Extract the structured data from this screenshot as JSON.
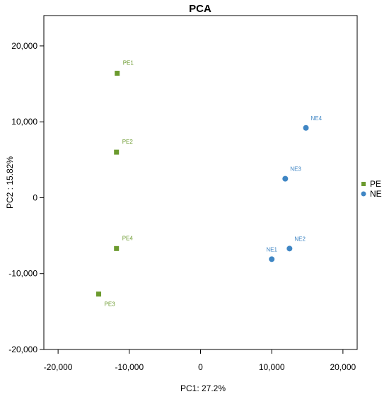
{
  "chart_data": {
    "type": "scatter",
    "title": "PCA",
    "xlabel": "PC1: 27.2%",
    "ylabel": "PC2 : 15.82%",
    "xlim": [
      -22000,
      22000
    ],
    "ylim": [
      -20000,
      24000
    ],
    "xticks": [
      -20000,
      -10000,
      0,
      10000,
      20000
    ],
    "xtick_labels": [
      "-20,000",
      "-10,000",
      "0",
      "10,000",
      "20,000"
    ],
    "yticks": [
      -20000,
      -10000,
      0,
      10000,
      20000
    ],
    "ytick_labels": [
      "-20,000",
      "-10,000",
      "0",
      "10,000",
      "20,000"
    ],
    "grid": false,
    "legend_position": "right",
    "series": [
      {
        "name": "PE",
        "color": "#6b9a2e",
        "marker": "square",
        "points": [
          {
            "label": "PE1",
            "x": -11700,
            "y": 16400
          },
          {
            "label": "PE2",
            "x": -11800,
            "y": 6000
          },
          {
            "label": "PE4",
            "x": -11800,
            "y": -6700
          },
          {
            "label": "PE3",
            "x": -14300,
            "y": -12700
          }
        ]
      },
      {
        "name": "NE",
        "color": "#3f86c4",
        "marker": "circle",
        "points": [
          {
            "label": "NE4",
            "x": 14800,
            "y": 9200
          },
          {
            "label": "NE3",
            "x": 11900,
            "y": 2500
          },
          {
            "label": "NE2",
            "x": 12500,
            "y": -6700
          },
          {
            "label": "NE1",
            "x": 10000,
            "y": -8100
          }
        ]
      }
    ]
  }
}
